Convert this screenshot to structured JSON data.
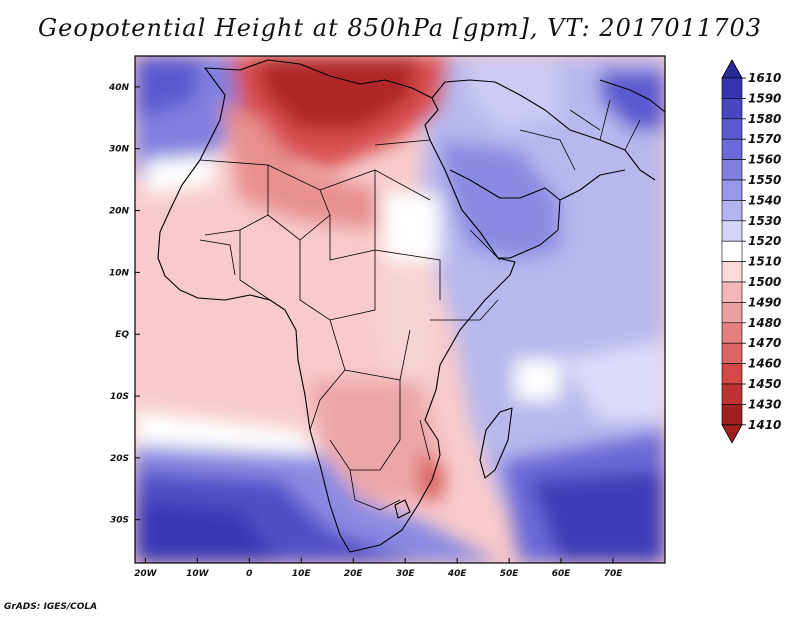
{
  "title": "Geopotential Height at 850hPa [gpm], VT: 2017011703",
  "credit": "GrADS: IGES/COLA",
  "axes": {
    "lat_labels": [
      "40N",
      "30N",
      "20N",
      "10N",
      "EQ",
      "10S",
      "20S",
      "30S"
    ],
    "lat_values": [
      40,
      30,
      20,
      10,
      0,
      -10,
      -20,
      -30
    ],
    "lon_labels": [
      "20W",
      "10W",
      "0",
      "10E",
      "20E",
      "30E",
      "40E",
      "50E",
      "60E",
      "70E"
    ],
    "lon_values": [
      -20,
      -10,
      0,
      10,
      20,
      30,
      40,
      50,
      60,
      70
    ],
    "lon_range": [
      -22,
      80
    ],
    "lat_range": [
      -37,
      45
    ]
  },
  "colorbar": {
    "levels": [
      "1610",
      "1590",
      "1580",
      "1570",
      "1560",
      "1550",
      "1540",
      "1530",
      "1520",
      "1510",
      "1500",
      "1490",
      "1480",
      "1470",
      "1460",
      "1450",
      "1430",
      "1410"
    ],
    "colors": [
      "#2a2a9a",
      "#3535b0",
      "#4848c0",
      "#5a5ad0",
      "#6a6ad8",
      "#8080e0",
      "#9898e8",
      "#b4b4f0",
      "#d4d4f8",
      "#ffffff",
      "#fadada",
      "#f4b8b8",
      "#eca0a0",
      "#e48080",
      "#dc6464",
      "#d44848",
      "#c03232",
      "#a02020"
    ]
  }
}
